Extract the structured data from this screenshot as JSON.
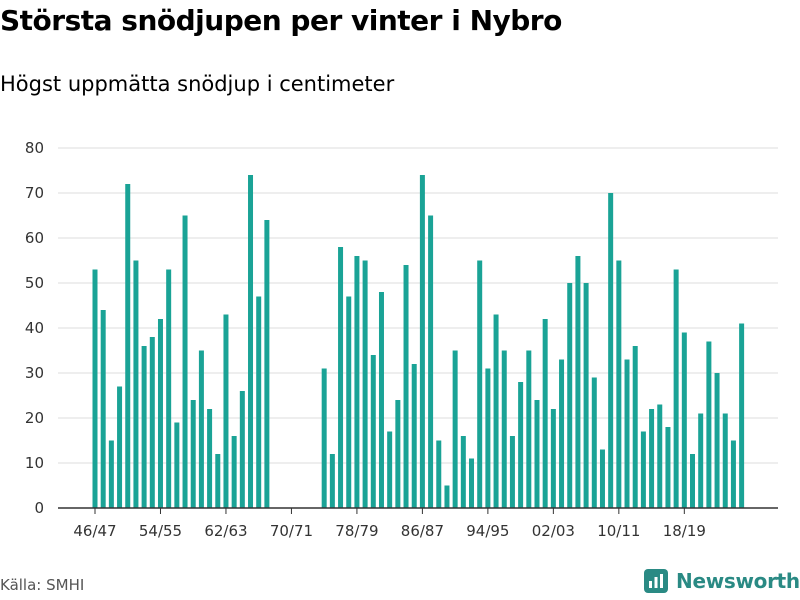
{
  "header": {
    "title": "Största snödjupen per vinter i Nybro",
    "subtitle": "Högst uppmätta snödjup i centimeter"
  },
  "footer": {
    "source": "Källa: SMHI",
    "brand": "Newsworthy"
  },
  "colors": {
    "bar": "#1aa396",
    "grid": "#dddddd",
    "axis": "#333333",
    "brand": "#2a8a84"
  },
  "chart_data": {
    "type": "bar",
    "title": "Största snödjupen per vinter i Nybro",
    "subtitle": "Högst uppmätta snödjup i centimeter",
    "xlabel": "",
    "ylabel": "",
    "ylim": [
      0,
      80
    ],
    "yticks": [
      0,
      10,
      20,
      30,
      40,
      50,
      60,
      70,
      80
    ],
    "grid": true,
    "categories": [
      "46/47",
      "47/48",
      "48/49",
      "49/50",
      "50/51",
      "51/52",
      "52/53",
      "53/54",
      "54/55",
      "55/56",
      "56/57",
      "57/58",
      "58/59",
      "59/60",
      "60/61",
      "61/62",
      "62/63",
      "63/64",
      "64/65",
      "65/66",
      "66/67",
      "67/68",
      "68/69",
      "69/70",
      "70/71",
      "71/72",
      "72/73",
      "73/74",
      "74/75",
      "75/76",
      "76/77",
      "77/78",
      "78/79",
      "79/80",
      "80/81",
      "81/82",
      "82/83",
      "83/84",
      "84/85",
      "85/86",
      "86/87",
      "87/88",
      "88/89",
      "89/90",
      "90/91",
      "91/92",
      "92/93",
      "93/94",
      "94/95",
      "95/96",
      "96/97",
      "97/98",
      "98/99",
      "99/00",
      "00/01",
      "01/02",
      "02/03",
      "03/04",
      "04/05",
      "05/06",
      "06/07",
      "07/08",
      "08/09",
      "09/10",
      "10/11",
      "11/12",
      "12/13",
      "13/14",
      "14/15",
      "15/16",
      "16/17",
      "17/18",
      "18/19",
      "19/20",
      "20/21",
      "21/22",
      "22/23",
      "23/24",
      "24/25",
      "25/26"
    ],
    "values": [
      53,
      44,
      15,
      27,
      72,
      55,
      36,
      38,
      42,
      53,
      19,
      65,
      24,
      35,
      22,
      12,
      43,
      16,
      26,
      74,
      47,
      64,
      null,
      null,
      null,
      null,
      null,
      null,
      31,
      12,
      58,
      47,
      56,
      55,
      34,
      48,
      17,
      24,
      54,
      32,
      74,
      65,
      15,
      5,
      35,
      16,
      11,
      55,
      31,
      43,
      35,
      16,
      28,
      35,
      24,
      42,
      22,
      33,
      50,
      56,
      50,
      29,
      13,
      70,
      55,
      33,
      36,
      17,
      22,
      23,
      18,
      53,
      39,
      12,
      21,
      37,
      30,
      21,
      15,
      41
    ],
    "xtick_labels": [
      "46/47",
      "54/55",
      "62/63",
      "70/71",
      "78/79",
      "86/87",
      "94/95",
      "02/03",
      "10/11",
      "18/19"
    ]
  }
}
